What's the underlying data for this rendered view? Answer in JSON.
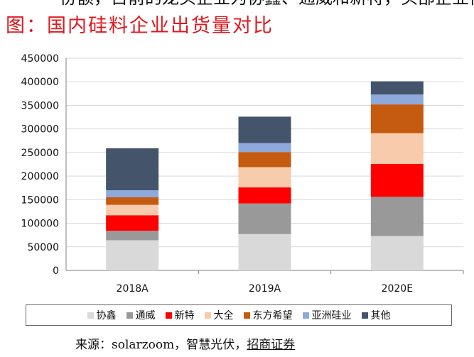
{
  "header": {
    "cut_text": "一份额，目前的龙头企业为协鑫、通威和新特，头部企业优势较为明显",
    "figure_title": "图：国内硅料企业出货量对比"
  },
  "source": {
    "prefix": "来源：solarzoom，智慧光伏，",
    "link": "招商证券"
  },
  "chart_data": {
    "type": "bar",
    "stacked": true,
    "categories": [
      "2018A",
      "2019A",
      "2020E"
    ],
    "ylim": [
      0,
      450000
    ],
    "yticks": [
      0,
      50000,
      100000,
      150000,
      200000,
      250000,
      300000,
      350000,
      400000,
      450000
    ],
    "ytick_labels": [
      "0",
      "50000",
      "100000",
      "150000",
      "200000",
      "250000",
      "300000",
      "350000",
      "400000",
      "450000"
    ],
    "grid": true,
    "legend_position": "bottom",
    "series": [
      {
        "name": "协鑫",
        "color": "#d9d9d9",
        "values": [
          64000,
          77000,
          73000
        ]
      },
      {
        "name": "通威",
        "color": "#999999",
        "values": [
          20000,
          65000,
          83000
        ]
      },
      {
        "name": "新特",
        "color": "#ff0000",
        "values": [
          33000,
          34000,
          70000
        ]
      },
      {
        "name": "大全",
        "color": "#f8cbad",
        "values": [
          22000,
          43000,
          65000
        ]
      },
      {
        "name": "东方希望",
        "color": "#c55a11",
        "values": [
          16000,
          32000,
          61000
        ]
      },
      {
        "name": "亚洲硅业",
        "color": "#8ea9db",
        "values": [
          15000,
          19000,
          21000
        ]
      },
      {
        "name": "其他",
        "color": "#44546a",
        "values": [
          89000,
          56000,
          28000
        ]
      }
    ]
  }
}
